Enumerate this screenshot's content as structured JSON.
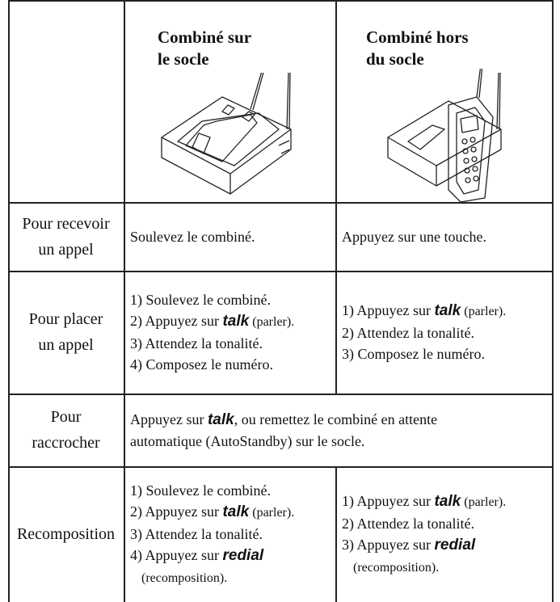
{
  "header": {
    "col2": [
      "Combiné sur",
      "le socle"
    ],
    "col3": [
      "Combiné hors",
      "du socle"
    ]
  },
  "rows": [
    {
      "label": [
        "Pour recevoir",
        "un appel"
      ],
      "cells": [
        [
          [
            "Soulevez le combiné."
          ]
        ],
        [
          [
            "Appuyez sur une touche."
          ]
        ]
      ]
    },
    {
      "label": [
        "Pour placer",
        "un appel"
      ],
      "cells": [
        [
          [
            "1) Soulevez le combiné."
          ],
          [
            "2) Appuyez sur ",
            {
              "key": "talk"
            },
            {
              "small": "(parler)."
            }
          ],
          [
            "3) Attendez la tonalité."
          ],
          [
            "4) Composez le numéro."
          ]
        ],
        [
          [
            "1) Appuyez sur ",
            {
              "key": "talk"
            },
            {
              "small": "(parler)."
            }
          ],
          [
            "2) Attendez la tonalité."
          ],
          [
            "3) Composez le numéro."
          ]
        ]
      ]
    },
    {
      "label": [
        "Pour",
        "raccrocher"
      ],
      "cells": [
        [
          [
            "Appuyez sur ",
            {
              "key": "talk"
            },
            ", ou remettez le combiné en attente"
          ],
          [
            "automatique (AutoStandby) sur le socle."
          ]
        ]
      ]
    },
    {
      "label": [
        "Recomposition"
      ],
      "cells": [
        [
          [
            "1) Soulevez le combiné."
          ],
          [
            "2) Appuyez sur ",
            {
              "key": "talk"
            },
            {
              "small": "(parler)."
            }
          ],
          [
            "3) Attendez la tonalité."
          ],
          [
            "4) Appuyez sur ",
            {
              "key": "redial"
            }
          ],
          [
            {
              "small": "(recomposition)."
            }
          ]
        ],
        [
          [
            "1) Appuyez sur ",
            {
              "key": "talk"
            },
            {
              "small": "(parler)."
            }
          ],
          [
            "2) Attendez la tonalité."
          ],
          [
            "3) Appuyez sur ",
            {
              "key": "redial"
            }
          ],
          [
            {
              "small": "(recomposition)."
            }
          ]
        ]
      ]
    }
  ]
}
